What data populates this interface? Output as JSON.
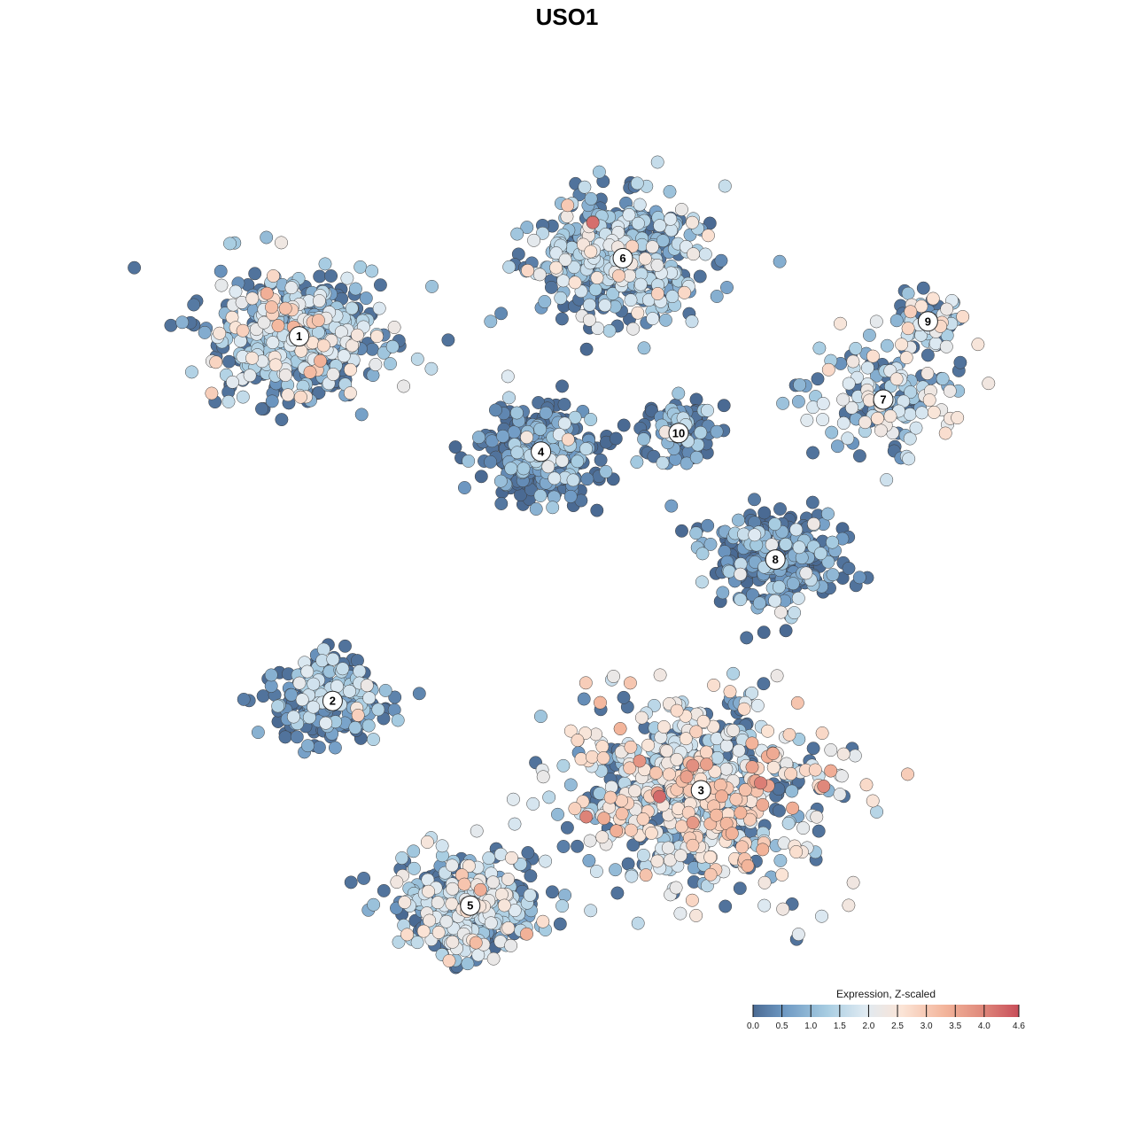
{
  "chart_data": {
    "type": "scatter",
    "title": "USO1",
    "color_scale": {
      "title": "Expression, Z-scaled",
      "min": 0.0,
      "max": 4.6,
      "ticks": [
        "0.0",
        "0.5",
        "1.0",
        "1.5",
        "2.0",
        "2.5",
        "3.0",
        "3.5",
        "4.0",
        "4.6"
      ],
      "tick_values": [
        0.0,
        0.5,
        1.0,
        1.5,
        2.0,
        2.5,
        3.0,
        3.5,
        4.0,
        4.6
      ],
      "colors": [
        "#4a6a93",
        "#6f9ac4",
        "#a8cde2",
        "#dfeaf2",
        "#fbe4d6",
        "#f3b59b",
        "#e08a7c",
        "#c84e5a"
      ],
      "color_positions": [
        0.0,
        0.12,
        0.28,
        0.42,
        0.56,
        0.72,
        0.86,
        1.0
      ]
    },
    "axes": {
      "x_visible": false,
      "y_visible": false,
      "grid": false
    },
    "legend_position": "bottom-right",
    "clusters": [
      {
        "id": "1",
        "x": -7.2,
        "y": 6.2,
        "spread": 1.35,
        "mean_expr": 1.3,
        "n": 520
      },
      {
        "id": "6",
        "x": 1.5,
        "y": 8.3,
        "spread": 1.3,
        "mean_expr": 1.3,
        "n": 480
      },
      {
        "id": "9",
        "x": 9.7,
        "y": 6.6,
        "spread": 0.55,
        "mean_expr": 1.6,
        "n": 70
      },
      {
        "id": "7",
        "x": 8.5,
        "y": 4.5,
        "spread": 1.2,
        "mean_expr": 1.6,
        "n": 150
      },
      {
        "id": "4",
        "x": -0.7,
        "y": 3.1,
        "spread": 0.9,
        "mean_expr": 0.3,
        "n": 380
      },
      {
        "id": "10",
        "x": 3.0,
        "y": 3.6,
        "spread": 0.6,
        "mean_expr": 0.5,
        "n": 120
      },
      {
        "id": "8",
        "x": 5.6,
        "y": 0.2,
        "spread": 1.0,
        "mean_expr": 0.6,
        "n": 260
      },
      {
        "id": "2",
        "x": -6.3,
        "y": -3.6,
        "spread": 0.9,
        "mean_expr": 0.7,
        "n": 240
      },
      {
        "id": "3",
        "x": 3.6,
        "y": -6.0,
        "spread": 2.0,
        "mean_expr": 2.0,
        "n": 720
      },
      {
        "id": "5",
        "x": -2.6,
        "y": -9.1,
        "spread": 1.1,
        "mean_expr": 1.3,
        "n": 430
      }
    ],
    "cluster_labels": [
      "1",
      "2",
      "3",
      "4",
      "5",
      "6",
      "7",
      "8",
      "9",
      "10"
    ]
  },
  "title": "USO1",
  "legend": {
    "title": "Expression, Z-scaled"
  }
}
